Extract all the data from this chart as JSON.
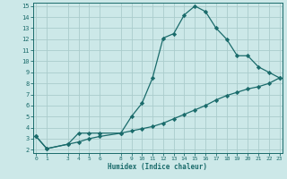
{
  "xlabel": "Humidex (Indice chaleur)",
  "bg_color": "#cce8e8",
  "grid_color": "#aacccc",
  "line_color": "#1a6b6b",
  "line1_x": [
    0,
    1,
    3,
    4,
    5,
    6,
    8,
    9,
    10,
    11,
    12,
    13,
    14,
    15,
    16,
    17,
    18,
    19,
    20,
    21,
    22,
    23
  ],
  "line1_y": [
    3.2,
    2.1,
    2.5,
    3.5,
    3.5,
    3.5,
    3.5,
    5.0,
    6.2,
    8.5,
    12.1,
    12.5,
    14.2,
    15.0,
    14.5,
    13.0,
    12.0,
    10.5,
    10.5,
    9.5,
    9.0,
    8.5
  ],
  "line2_x": [
    0,
    1,
    3,
    4,
    5,
    6,
    8,
    9,
    10,
    11,
    12,
    13,
    14,
    15,
    16,
    17,
    18,
    19,
    20,
    21,
    22,
    23
  ],
  "line2_y": [
    3.2,
    2.1,
    2.5,
    2.7,
    3.0,
    3.2,
    3.5,
    3.7,
    3.9,
    4.1,
    4.4,
    4.8,
    5.2,
    5.6,
    6.0,
    6.5,
    6.9,
    7.2,
    7.5,
    7.7,
    8.0,
    8.5
  ],
  "xlim": [
    -0.3,
    23.3
  ],
  "ylim": [
    1.7,
    15.3
  ],
  "yticks": [
    2,
    3,
    4,
    5,
    6,
    7,
    8,
    9,
    10,
    11,
    12,
    13,
    14,
    15
  ],
  "xticks": [
    0,
    1,
    3,
    4,
    5,
    6,
    8,
    9,
    10,
    11,
    12,
    13,
    14,
    15,
    16,
    17,
    18,
    19,
    20,
    21,
    22,
    23
  ],
  "xtick_labels": [
    "0",
    "1",
    "3",
    "4",
    "5",
    "6",
    "8",
    "9",
    "10",
    "11",
    "12",
    "13",
    "14",
    "15",
    "16",
    "17",
    "18",
    "19",
    "20",
    "21",
    "22",
    "23"
  ],
  "marker": "D",
  "marker_size": 2.2,
  "linewidth": 0.9
}
